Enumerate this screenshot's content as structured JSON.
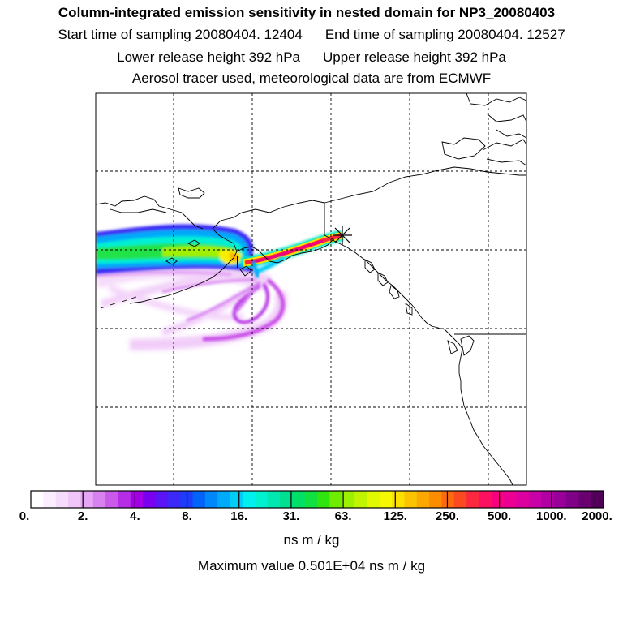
{
  "title": {
    "line1": "Column-integrated emission sensitivity in nested domain for NP3_20080403",
    "start_sampling": "Start time of sampling 20080404. 12404",
    "end_sampling": "End time of sampling 20080404. 12527",
    "lower_release": "Lower release height  392 hPa",
    "upper_release": "Upper release height  392 hPa",
    "line4": "Aerosol tracer used, meteorological data are from ECMWF"
  },
  "colorbar": {
    "labels": [
      "0.",
      "2.",
      "4.",
      "8.",
      "16.",
      "31.",
      "63.",
      "125.",
      "250.",
      "500.",
      "1000.",
      "2000."
    ],
    "colors": [
      "#ffffff",
      "#fbeefe",
      "#f6dcfc",
      "#f0c6fa",
      "#e6a6f5",
      "#d882ef",
      "#c95aea",
      "#b52ee6",
      "#a400e6",
      "#7a00f0",
      "#5a14f5",
      "#3c28f8",
      "#1e3cfa",
      "#0064fa",
      "#0088fa",
      "#00aafa",
      "#00ccf8",
      "#00f0f0",
      "#00f0d0",
      "#00e8b0",
      "#00e090",
      "#00e066",
      "#10e040",
      "#30e410",
      "#70ec00",
      "#9cf000",
      "#c0f400",
      "#e0f800",
      "#f4f800",
      "#fce000",
      "#fcc400",
      "#fca800",
      "#fc8c00",
      "#fc6a10",
      "#fc4a20",
      "#fc2840",
      "#fc1060",
      "#f80080",
      "#ec0094",
      "#dc00a0",
      "#c800a8",
      "#b000a4",
      "#980098",
      "#800088",
      "#680070",
      "#500058"
    ],
    "units": "ns m / kg",
    "max_value_text": "Maximum value  0.501E+04 ns m / kg"
  }
}
